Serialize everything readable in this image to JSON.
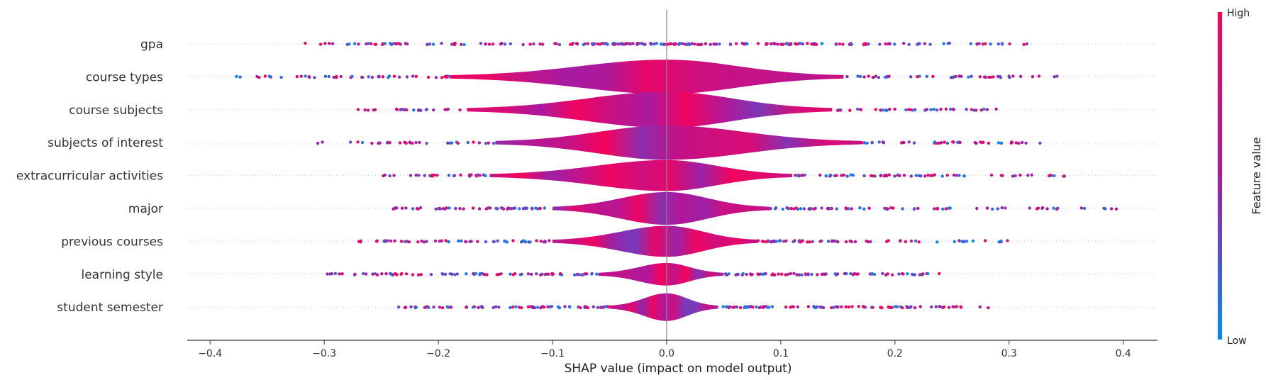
{
  "chart_data": {
    "type": "violin",
    "title": "",
    "xlabel": "SHAP value (impact on model output)",
    "ylabel": "",
    "xlim": [
      -0.42,
      0.43
    ],
    "xticks": [
      -0.4,
      -0.3,
      -0.2,
      -0.1,
      0.0,
      0.1,
      0.2,
      0.3,
      0.4
    ],
    "xtick_labels": [
      "−0.4",
      "−0.3",
      "−0.2",
      "−0.1",
      "0.0",
      "0.1",
      "0.2",
      "0.3",
      "0.4"
    ],
    "colorbar": {
      "title": "Feature value",
      "high_label": "High",
      "low_label": "Low",
      "high_color": "#ff0052",
      "low_color": "#008bfb"
    },
    "features": [
      {
        "name": "gpa",
        "min": -0.32,
        "max": 0.32,
        "core": [
          -0.2,
          0.2
        ],
        "width": 0.0
      },
      {
        "name": "course types",
        "min": -0.38,
        "max": 0.35,
        "core": [
          -0.19,
          0.155
        ],
        "width": 0.95
      },
      {
        "name": "course subjects",
        "min": -0.28,
        "max": 0.29,
        "core": [
          -0.175,
          0.145
        ],
        "width": 1.0
      },
      {
        "name": "subjects of interest",
        "min": -0.31,
        "max": 0.33,
        "core": [
          -0.15,
          0.17
        ],
        "width": 0.95
      },
      {
        "name": "extracurricular activities",
        "min": -0.25,
        "max": 0.35,
        "core": [
          -0.155,
          0.11
        ],
        "width": 0.85
      },
      {
        "name": "major",
        "min": -0.24,
        "max": 0.4,
        "core": [
          -0.1,
          0.09
        ],
        "width": 0.9
      },
      {
        "name": "previous courses",
        "min": -0.27,
        "max": 0.3,
        "core": [
          -0.1,
          0.08
        ],
        "width": 0.85
      },
      {
        "name": "learning style",
        "min": -0.3,
        "max": 0.24,
        "core": [
          -0.06,
          0.05
        ],
        "width": 0.6
      },
      {
        "name": "student semester",
        "min": -0.24,
        "max": 0.29,
        "core": [
          -0.05,
          0.045
        ],
        "width": 0.75
      }
    ]
  }
}
